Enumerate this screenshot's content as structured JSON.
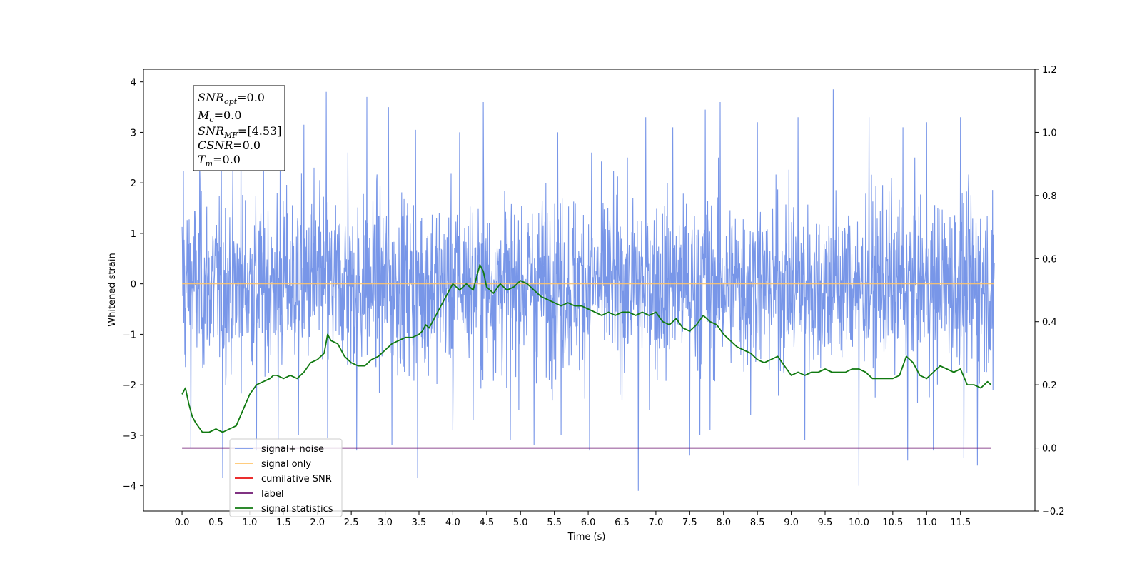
{
  "chart_data": {
    "type": "line",
    "xlabel": "Time (s)",
    "ylabel": "Whitened strain",
    "xlim": [
      -0.57,
      12.6
    ],
    "ylim_left": [
      -4.5,
      4.25
    ],
    "ylim_right": [
      -0.2,
      1.2
    ],
    "x_ticks": [
      "0.0",
      "0.5",
      "1.0",
      "1.5",
      "2.0",
      "2.5",
      "3.0",
      "3.5",
      "4.0",
      "4.5",
      "5.0",
      "5.5",
      "6.0",
      "6.5",
      "7.0",
      "7.5",
      "8.0",
      "8.5",
      "9.0",
      "9.5",
      "10.0",
      "10.5",
      "11.0",
      "11.5"
    ],
    "y_ticks_left": [
      "4",
      "3",
      "2",
      "1",
      "0",
      "−1",
      "−2",
      "−3",
      "−4"
    ],
    "y_ticks_right": [
      "1.2",
      "1.0",
      "0.8",
      "0.6",
      "0.4",
      "0.2",
      "0.0",
      "−0.2"
    ],
    "grid": false,
    "legend_position": "lower-left",
    "legend": [
      {
        "label": "signal+ noise",
        "color": "#7896e8"
      },
      {
        "label": "signal only",
        "color": "#ffc46b"
      },
      {
        "label": "cumilative SNR",
        "color": "#e81010"
      },
      {
        "label": "label",
        "color": "#6e1470"
      },
      {
        "label": "signal statistics",
        "color": "#117a11"
      }
    ],
    "stats": {
      "snr_opt": {
        "base": "SNR",
        "sub": "opt",
        "value": "=0.0"
      },
      "mc": {
        "base": "M",
        "sub": "c",
        "value": "=0.0"
      },
      "snr_mf": {
        "base": "SNR",
        "sub": "MF",
        "value": "=[4.53]"
      },
      "csnr": {
        "base": "CSNR",
        "sub": "",
        "value": "=0.0"
      },
      "tm": {
        "base": "T",
        "sub": "m",
        "value": "=0.0"
      }
    },
    "series": [
      {
        "key": "noise",
        "axis": "left",
        "color": "#7896e8",
        "t_range": [
          0.0,
          12.0
        ],
        "band": [
          -1.5,
          1.5
        ],
        "noise_sd": 0.85,
        "peaks": [
          [
            0.02,
            2.24
          ],
          [
            0.13,
            2.5
          ],
          [
            0.26,
            2.4
          ],
          [
            0.58,
            2.9
          ],
          [
            0.87,
            3.05
          ],
          [
            1.45,
            3.1
          ],
          [
            1.8,
            3.15
          ],
          [
            1.95,
            2.3
          ],
          [
            2.13,
            3.8
          ],
          [
            2.45,
            2.6
          ],
          [
            2.73,
            3.7
          ],
          [
            3.05,
            3.5
          ],
          [
            3.45,
            3.05
          ],
          [
            4.1,
            3.0
          ],
          [
            4.45,
            3.6
          ],
          [
            5.2,
            3.3
          ],
          [
            5.55,
            3.0
          ],
          [
            6.05,
            2.6
          ],
          [
            6.85,
            3.3
          ],
          [
            7.25,
            3.1
          ],
          [
            7.73,
            3.45
          ],
          [
            7.95,
            3.6
          ],
          [
            8.5,
            3.2
          ],
          [
            9.1,
            3.3
          ],
          [
            9.62,
            3.85
          ],
          [
            10.15,
            3.3
          ],
          [
            10.65,
            3.1
          ],
          [
            11.0,
            3.2
          ],
          [
            11.5,
            3.3
          ],
          [
            11.98,
            3.65
          ]
        ],
        "troughs": [
          [
            0.04,
            -1.4
          ],
          [
            0.13,
            -3.25
          ],
          [
            0.6,
            -3.85
          ],
          [
            1.1,
            -3.3
          ],
          [
            1.42,
            -3.1
          ],
          [
            1.72,
            -3.0
          ],
          [
            2.15,
            -3.05
          ],
          [
            2.58,
            -3.3
          ],
          [
            3.1,
            -3.2
          ],
          [
            3.48,
            -3.85
          ],
          [
            4.0,
            -2.9
          ],
          [
            4.3,
            -2.7
          ],
          [
            4.85,
            -3.1
          ],
          [
            5.2,
            -3.2
          ],
          [
            5.6,
            -3.0
          ],
          [
            6.02,
            -3.3
          ],
          [
            6.74,
            -4.1
          ],
          [
            7.5,
            -3.4
          ],
          [
            7.65,
            -3.0
          ],
          [
            7.8,
            -2.9
          ],
          [
            8.4,
            -2.6
          ],
          [
            9.2,
            -3.1
          ],
          [
            10.0,
            -4.0
          ],
          [
            10.72,
            -3.5
          ],
          [
            11.1,
            -3.3
          ],
          [
            11.55,
            -3.45
          ],
          [
            11.75,
            -3.6
          ],
          [
            11.98,
            -2.1
          ]
        ]
      },
      {
        "key": "signal",
        "axis": "left",
        "color": "#ffc46b",
        "x": [
          0.0,
          12.0
        ],
        "y": [
          0.0,
          0.0
        ]
      },
      {
        "key": "label",
        "axis": "right",
        "color": "#6e1470",
        "x": [
          0.0,
          11.95
        ],
        "y": [
          0.0,
          0.0
        ]
      },
      {
        "key": "statistics",
        "axis": "right",
        "color": "#117a11",
        "x": [
          0.0,
          0.05,
          0.1,
          0.15,
          0.2,
          0.3,
          0.4,
          0.5,
          0.6,
          0.7,
          0.8,
          0.9,
          1.0,
          1.1,
          1.2,
          1.3,
          1.35,
          1.4,
          1.5,
          1.6,
          1.7,
          1.8,
          1.9,
          2.0,
          2.1,
          2.15,
          2.2,
          2.3,
          2.4,
          2.5,
          2.6,
          2.7,
          2.8,
          2.9,
          3.0,
          3.1,
          3.2,
          3.3,
          3.4,
          3.5,
          3.55,
          3.6,
          3.65,
          3.7,
          3.8,
          3.9,
          4.0,
          4.1,
          4.2,
          4.3,
          4.4,
          4.45,
          4.5,
          4.6,
          4.7,
          4.8,
          4.9,
          5.0,
          5.1,
          5.2,
          5.3,
          5.4,
          5.5,
          5.6,
          5.7,
          5.8,
          5.9,
          6.0,
          6.1,
          6.2,
          6.3,
          6.4,
          6.5,
          6.6,
          6.7,
          6.8,
          6.9,
          7.0,
          7.1,
          7.2,
          7.3,
          7.4,
          7.5,
          7.6,
          7.7,
          7.8,
          7.9,
          8.0,
          8.1,
          8.2,
          8.3,
          8.4,
          8.5,
          8.6,
          8.7,
          8.8,
          8.9,
          9.0,
          9.1,
          9.2,
          9.3,
          9.4,
          9.5,
          9.6,
          9.7,
          9.8,
          9.9,
          10.0,
          10.1,
          10.2,
          10.3,
          10.4,
          10.5,
          10.6,
          10.7,
          10.8,
          10.9,
          11.0,
          11.1,
          11.2,
          11.3,
          11.4,
          11.5,
          11.6,
          11.7,
          11.8,
          11.9,
          11.95
        ],
        "y": [
          0.17,
          0.19,
          0.14,
          0.1,
          0.08,
          0.05,
          0.05,
          0.06,
          0.05,
          0.06,
          0.07,
          0.12,
          0.17,
          0.2,
          0.21,
          0.22,
          0.23,
          0.23,
          0.22,
          0.23,
          0.22,
          0.24,
          0.27,
          0.28,
          0.3,
          0.36,
          0.34,
          0.33,
          0.29,
          0.27,
          0.26,
          0.26,
          0.28,
          0.29,
          0.31,
          0.33,
          0.34,
          0.35,
          0.35,
          0.36,
          0.37,
          0.39,
          0.38,
          0.4,
          0.44,
          0.48,
          0.52,
          0.5,
          0.52,
          0.5,
          0.58,
          0.56,
          0.51,
          0.49,
          0.52,
          0.5,
          0.51,
          0.53,
          0.52,
          0.5,
          0.48,
          0.47,
          0.46,
          0.45,
          0.46,
          0.45,
          0.45,
          0.44,
          0.43,
          0.42,
          0.43,
          0.42,
          0.43,
          0.43,
          0.42,
          0.43,
          0.42,
          0.43,
          0.4,
          0.39,
          0.41,
          0.38,
          0.37,
          0.39,
          0.42,
          0.4,
          0.39,
          0.36,
          0.34,
          0.32,
          0.31,
          0.3,
          0.28,
          0.27,
          0.28,
          0.29,
          0.26,
          0.23,
          0.24,
          0.23,
          0.24,
          0.24,
          0.25,
          0.24,
          0.24,
          0.24,
          0.25,
          0.25,
          0.24,
          0.22,
          0.22,
          0.22,
          0.22,
          0.23,
          0.29,
          0.27,
          0.23,
          0.22,
          0.24,
          0.26,
          0.25,
          0.24,
          0.25,
          0.2,
          0.2,
          0.19,
          0.21,
          0.2
        ]
      }
    ]
  }
}
